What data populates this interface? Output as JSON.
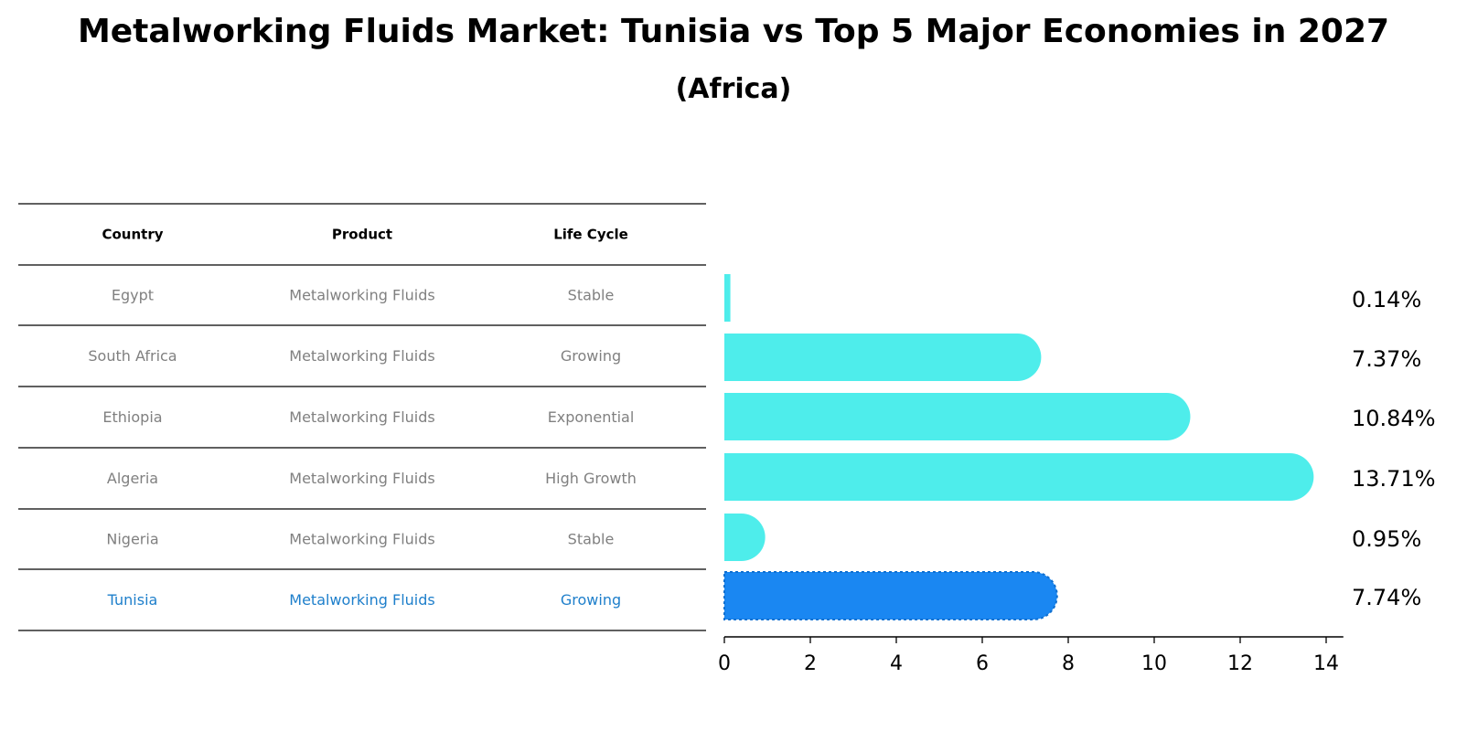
{
  "title": "Metalworking Fluids Market: Tunisia vs Top 5 Major Economies in 2027",
  "subtitle": "(Africa)",
  "colors": {
    "bar": "#4EEDEB",
    "highlight_bar": "#1A87F2",
    "highlight_text": "#1E7FCB",
    "row_text": "#808080"
  },
  "table": {
    "headers": [
      "Country",
      "Product",
      "Life Cycle"
    ],
    "rows": [
      {
        "country": "Egypt",
        "product": "Metalworking Fluids",
        "life_cycle": "Stable",
        "highlight": false
      },
      {
        "country": "South Africa",
        "product": "Metalworking Fluids",
        "life_cycle": "Growing",
        "highlight": false
      },
      {
        "country": "Ethiopia",
        "product": "Metalworking Fluids",
        "life_cycle": "Exponential",
        "highlight": false
      },
      {
        "country": "Algeria",
        "product": "Metalworking Fluids",
        "life_cycle": "High Growth",
        "highlight": false
      },
      {
        "country": "Nigeria",
        "product": "Metalworking Fluids",
        "life_cycle": "Stable",
        "highlight": false
      },
      {
        "country": "Tunisia",
        "product": "Metalworking Fluids",
        "life_cycle": "Growing",
        "highlight": true
      }
    ]
  },
  "chart_data": {
    "type": "bar",
    "orientation": "horizontal",
    "categories": [
      "Egypt",
      "South Africa",
      "Ethiopia",
      "Algeria",
      "Nigeria",
      "Tunisia"
    ],
    "values": [
      0.14,
      7.37,
      10.84,
      13.71,
      0.95,
      7.74
    ],
    "data_labels": [
      "0.14%",
      "7.37%",
      "10.84%",
      "13.71%",
      "0.95%",
      "7.74%"
    ],
    "highlight_category": "Tunisia",
    "xlim": [
      0,
      14.4
    ],
    "xticks": [
      0,
      2,
      4,
      6,
      8,
      10,
      12,
      14
    ],
    "title": "",
    "xlabel": "",
    "ylabel": "",
    "grid": false,
    "legend": false
  }
}
